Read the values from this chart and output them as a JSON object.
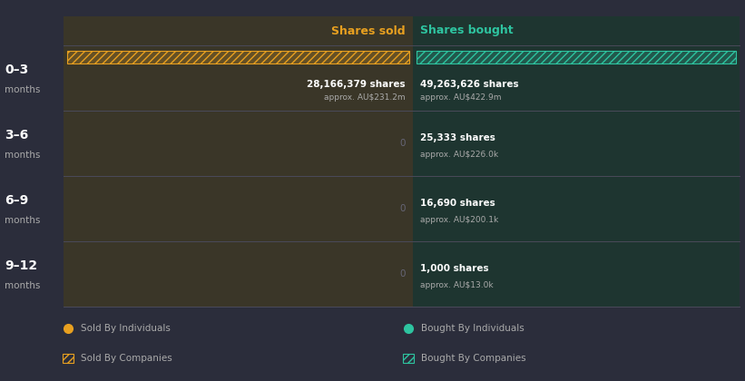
{
  "bg_color": "#2b2d3b",
  "left_panel_color": "#3a3628",
  "right_panel_color": "#1e3530",
  "divider_color": "#4a4a5a",
  "col_sold_label": "Shares sold",
  "col_bought_label": "Shares bought",
  "col_sold_color": "#e8a020",
  "col_bought_color": "#2ec4a0",
  "row_labels_main": [
    "0–3",
    "3–6",
    "6–9",
    "9–12"
  ],
  "row_labels_sub": [
    "months",
    "months",
    "months",
    "months"
  ],
  "sold_bar_color": "#e8a020",
  "bought_bar_color": "#2ec4a0",
  "sold_shares": [
    "28,166,379 shares",
    "",
    "",
    ""
  ],
  "sold_approx": [
    "approx. AU$231.2m",
    "",
    "",
    ""
  ],
  "sold_zero": [
    false,
    true,
    true,
    true
  ],
  "bought_shares": [
    "49,263,626 shares",
    "25,333 shares",
    "16,690 shares",
    "1,000 shares"
  ],
  "bought_approx": [
    "approx. AU$422.9m",
    "approx. AU$226.0k",
    "approx. AU$200.1k",
    "approx. AU$13.0k"
  ],
  "legend_sold_ind": "Sold By Individuals",
  "legend_sold_comp": "Sold By Companies",
  "legend_bought_ind": "Bought By Individuals",
  "legend_bought_comp": "Bought By Companies",
  "text_white": "#ffffff",
  "text_gray": "#aaaaaa",
  "text_dim": "#666677"
}
